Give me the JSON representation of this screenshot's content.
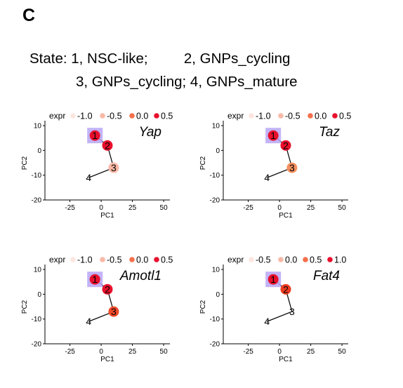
{
  "panel_label": "C",
  "state_lines": [
    "State: 1, NSC-like;         2, GNPs_cycling",
    "3, GNPs_cycling; 4, GNPs_mature"
  ],
  "colors": {
    "highlight_box": "#b8a6f4",
    "path_line": "#000000",
    "axis": "#000000"
  },
  "chart_data": [
    {
      "type": "scatter",
      "gene": "Yap",
      "xlabel": "PC1",
      "ylabel": "PC2",
      "xlim": [
        -45,
        55
      ],
      "ylim": [
        -20,
        12
      ],
      "xticks": [
        -25,
        0,
        25,
        50
      ],
      "xtick_labels": [
        "-25",
        "0",
        "25",
        "50"
      ],
      "yticks": [
        10,
        0,
        -10,
        -20
      ],
      "ytick_labels": [
        "10",
        "0",
        "-10",
        "-20"
      ],
      "legend_title": "expr",
      "legend": [
        {
          "label": "-1.0",
          "color": "#fde6df"
        },
        {
          "label": "-0.5",
          "color": "#f9b9a6"
        },
        {
          "label": "0.0",
          "color": "#f3704c"
        },
        {
          "label": "0.5",
          "color": "#e8102c"
        }
      ],
      "points": [
        {
          "state": "1",
          "x": -5,
          "y": 6,
          "color": "#e8102c",
          "highlighted": true
        },
        {
          "state": "2",
          "x": 5,
          "y": 2,
          "color": "#e8102c",
          "highlighted": false
        },
        {
          "state": "3",
          "x": 10,
          "y": -7,
          "color": "#f9b9a6",
          "highlighted": false
        },
        {
          "state": "4",
          "x": -10,
          "y": -11,
          "color": null,
          "highlighted": false
        }
      ]
    },
    {
      "type": "scatter",
      "gene": "Taz",
      "xlabel": "PC1",
      "ylabel": "PC2",
      "xlim": [
        -45,
        55
      ],
      "ylim": [
        -20,
        12
      ],
      "xticks": [
        -25,
        0,
        25,
        50
      ],
      "xtick_labels": [
        "-25",
        "0",
        "25",
        "50"
      ],
      "yticks": [
        10,
        0,
        -10,
        -20
      ],
      "ytick_labels": [
        "10",
        "0",
        "-10",
        "-20"
      ],
      "legend_title": "expr",
      "legend": [
        {
          "label": "-1.0",
          "color": "#fde6df"
        },
        {
          "label": "-0.5",
          "color": "#f9b9a6"
        },
        {
          "label": "0.0",
          "color": "#f3704c"
        },
        {
          "label": "0.5",
          "color": "#e8102c"
        }
      ],
      "points": [
        {
          "state": "1",
          "x": -5,
          "y": 6,
          "color": "#e8102c",
          "highlighted": true
        },
        {
          "state": "2",
          "x": 5,
          "y": 2,
          "color": "#e8102c",
          "highlighted": false
        },
        {
          "state": "3",
          "x": 10,
          "y": -7,
          "color": "#f5915f",
          "highlighted": false
        },
        {
          "state": "4",
          "x": -10,
          "y": -11,
          "color": null,
          "highlighted": false
        }
      ]
    },
    {
      "type": "scatter",
      "gene": "Amotl1",
      "xlabel": "PC1",
      "ylabel": "PC2",
      "xlim": [
        -45,
        55
      ],
      "ylim": [
        -20,
        12
      ],
      "xticks": [
        -25,
        0,
        25,
        50
      ],
      "xtick_labels": [
        "-25",
        "0",
        "25",
        "50"
      ],
      "yticks": [
        10,
        0,
        -10,
        -20
      ],
      "ytick_labels": [
        "10",
        "0",
        "-10",
        "-20"
      ],
      "legend_title": "expr",
      "legend": [
        {
          "label": "-1.0",
          "color": "#fde6df"
        },
        {
          "label": "-0.5",
          "color": "#f9b9a6"
        },
        {
          "label": "0.0",
          "color": "#f3704c"
        },
        {
          "label": "0.5",
          "color": "#e8102c"
        }
      ],
      "points": [
        {
          "state": "1",
          "x": -5,
          "y": 6,
          "color": "#e8102c",
          "highlighted": true
        },
        {
          "state": "2",
          "x": 5,
          "y": 2,
          "color": "#e8102c",
          "highlighted": false
        },
        {
          "state": "3",
          "x": 10,
          "y": -7,
          "color": "#f04a2a",
          "highlighted": false
        },
        {
          "state": "4",
          "x": -10,
          "y": -11,
          "color": null,
          "highlighted": false
        }
      ]
    },
    {
      "type": "scatter",
      "gene": "Fat4",
      "xlabel": "PC1",
      "ylabel": "PC2",
      "xlim": [
        -45,
        55
      ],
      "ylim": [
        -20,
        12
      ],
      "xticks": [
        -25,
        0,
        25,
        50
      ],
      "xtick_labels": [
        "-25",
        "0",
        "25",
        "50"
      ],
      "yticks": [
        10,
        0,
        -10,
        -20
      ],
      "ytick_labels": [
        "10",
        "0",
        "-10",
        "-20"
      ],
      "legend_title": "expr",
      "legend": [
        {
          "label": "-0.5",
          "color": "#fde6df"
        },
        {
          "label": "0.0",
          "color": "#f9b9a6"
        },
        {
          "label": "0.5",
          "color": "#f3704c"
        },
        {
          "label": "1.0",
          "color": "#e8102c"
        }
      ],
      "points": [
        {
          "state": "1",
          "x": -5,
          "y": 6,
          "color": "#e8102c",
          "highlighted": true
        },
        {
          "state": "2",
          "x": 5,
          "y": 2,
          "color": "#ee3b1f",
          "highlighted": false
        },
        {
          "state": "3",
          "x": 10,
          "y": -7,
          "color": null,
          "highlighted": false
        },
        {
          "state": "4",
          "x": -10,
          "y": -11,
          "color": null,
          "highlighted": false
        }
      ]
    }
  ]
}
